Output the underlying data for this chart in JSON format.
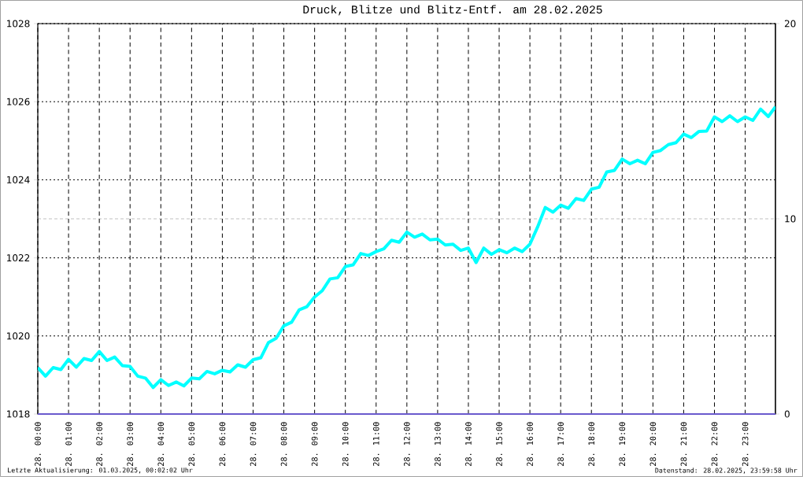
{
  "chart_data": {
    "type": "line",
    "title": "Druck, Blitze und Blitz-Entf. am 28.02.2025",
    "x": [
      "2025-02-28T00:00",
      "2025-02-28T00:15",
      "2025-02-28T00:30",
      "2025-02-28T00:45",
      "2025-02-28T01:00",
      "2025-02-28T01:15",
      "2025-02-28T01:30",
      "2025-02-28T01:45",
      "2025-02-28T02:00",
      "2025-02-28T02:15",
      "2025-02-28T02:30",
      "2025-02-28T02:45",
      "2025-02-28T03:00",
      "2025-02-28T03:15",
      "2025-02-28T03:30",
      "2025-02-28T03:45",
      "2025-02-28T04:00",
      "2025-02-28T04:15",
      "2025-02-28T04:30",
      "2025-02-28T04:45",
      "2025-02-28T05:00",
      "2025-02-28T05:15",
      "2025-02-28T05:30",
      "2025-02-28T05:45",
      "2025-02-28T06:00",
      "2025-02-28T06:15",
      "2025-02-28T06:30",
      "2025-02-28T06:45",
      "2025-02-28T07:00",
      "2025-02-28T07:15",
      "2025-02-28T07:30",
      "2025-02-28T07:45",
      "2025-02-28T08:00",
      "2025-02-28T08:15",
      "2025-02-28T08:30",
      "2025-02-28T08:45",
      "2025-02-28T09:00",
      "2025-02-28T09:15",
      "2025-02-28T09:30",
      "2025-02-28T09:45",
      "2025-02-28T10:00",
      "2025-02-28T10:15",
      "2025-02-28T10:30",
      "2025-02-28T10:45",
      "2025-02-28T11:00",
      "2025-02-28T11:15",
      "2025-02-28T11:30",
      "2025-02-28T11:45",
      "2025-02-28T12:00",
      "2025-02-28T12:15",
      "2025-02-28T12:30",
      "2025-02-28T12:45",
      "2025-02-28T13:00",
      "2025-02-28T13:15",
      "2025-02-28T13:30",
      "2025-02-28T13:45",
      "2025-02-28T14:00",
      "2025-02-28T14:15",
      "2025-02-28T14:30",
      "2025-02-28T14:45",
      "2025-02-28T15:00",
      "2025-02-28T15:15",
      "2025-02-28T15:30",
      "2025-02-28T15:45",
      "2025-02-28T16:00",
      "2025-02-28T16:15",
      "2025-02-28T16:30",
      "2025-02-28T16:45",
      "2025-02-28T17:00",
      "2025-02-28T17:15",
      "2025-02-28T17:30",
      "2025-02-28T17:45",
      "2025-02-28T18:00",
      "2025-02-28T18:15",
      "2025-02-28T18:30",
      "2025-02-28T18:45",
      "2025-02-28T19:00",
      "2025-02-28T19:15",
      "2025-02-28T19:30",
      "2025-02-28T19:45",
      "2025-02-28T20:00",
      "2025-02-28T20:15",
      "2025-02-28T20:30",
      "2025-02-28T20:45",
      "2025-02-28T21:00",
      "2025-02-28T21:15",
      "2025-02-28T21:30",
      "2025-02-28T21:45",
      "2025-02-28T22:00",
      "2025-02-28T22:15",
      "2025-02-28T22:30",
      "2025-02-28T22:45",
      "2025-02-28T23:00",
      "2025-02-28T23:15",
      "2025-02-28T23:30",
      "2025-02-28T23:45",
      "2025-02-28T23:59"
    ],
    "series": [
      {
        "color": "#00ffff",
        "values": [
          1019.19,
          1018.97,
          1019.19,
          1019.14,
          1019.4,
          1019.2,
          1019.42,
          1019.37,
          1019.6,
          1019.37,
          1019.46,
          1019.24,
          1019.22,
          1018.97,
          1018.92,
          1018.68,
          1018.88,
          1018.73,
          1018.82,
          1018.72,
          1018.92,
          1018.9,
          1019.09,
          1019.03,
          1019.12,
          1019.08,
          1019.26,
          1019.2,
          1019.39,
          1019.44,
          1019.83,
          1019.94,
          1020.26,
          1020.35,
          1020.67,
          1020.75,
          1021.0,
          1021.16,
          1021.46,
          1021.49,
          1021.78,
          1021.82,
          1022.11,
          1022.06,
          1022.16,
          1022.23,
          1022.45,
          1022.4,
          1022.66,
          1022.53,
          1022.61,
          1022.46,
          1022.48,
          1022.33,
          1022.35,
          1022.19,
          1022.25,
          1021.88,
          1022.25,
          1022.09,
          1022.21,
          1022.13,
          1022.25,
          1022.16,
          1022.35,
          1022.79,
          1023.29,
          1023.17,
          1023.35,
          1023.27,
          1023.52,
          1023.47,
          1023.76,
          1023.81,
          1024.2,
          1024.24,
          1024.53,
          1024.41,
          1024.5,
          1024.41,
          1024.7,
          1024.75,
          1024.9,
          1024.95,
          1025.17,
          1025.08,
          1025.24,
          1025.25,
          1025.61,
          1025.49,
          1025.64,
          1025.49,
          1025.61,
          1025.52,
          1025.81,
          1025.62,
          1025.87
        ]
      },
      {
        "color": "#6a5acd",
        "axis": "y2",
        "x": [
          "2025-02-28T00:00",
          "2025-02-28T23:59"
        ],
        "values": [
          0,
          0
        ]
      }
    ],
    "xlim": [
      "2025-02-28T00:00",
      "2025-02-28T23:59"
    ],
    "xticks": [
      {
        "value": "2025-02-28T00:00",
        "label": "28. 00:00"
      },
      {
        "value": "2025-02-28T01:00",
        "label": "28. 01:00"
      },
      {
        "value": "2025-02-28T02:00",
        "label": "28. 02:00"
      },
      {
        "value": "2025-02-28T03:00",
        "label": "28. 03:00"
      },
      {
        "value": "2025-02-28T04:00",
        "label": "28. 04:00"
      },
      {
        "value": "2025-02-28T05:00",
        "label": "28. 05:00"
      },
      {
        "value": "2025-02-28T06:00",
        "label": "28. 06:00"
      },
      {
        "value": "2025-02-28T07:00",
        "label": "28. 07:00"
      },
      {
        "value": "2025-02-28T08:00",
        "label": "28. 08:00"
      },
      {
        "value": "2025-02-28T09:00",
        "label": "28. 09:00"
      },
      {
        "value": "2025-02-28T10:00",
        "label": "28. 10:00"
      },
      {
        "value": "2025-02-28T11:00",
        "label": "28. 11:00"
      },
      {
        "value": "2025-02-28T12:00",
        "label": "28. 12:00"
      },
      {
        "value": "2025-02-28T13:00",
        "label": "28. 13:00"
      },
      {
        "value": "2025-02-28T14:00",
        "label": "28. 14:00"
      },
      {
        "value": "2025-02-28T15:00",
        "label": "28. 15:00"
      },
      {
        "value": "2025-02-28T16:00",
        "label": "28. 16:00"
      },
      {
        "value": "2025-02-28T17:00",
        "label": "28. 17:00"
      },
      {
        "value": "2025-02-28T18:00",
        "label": "28. 18:00"
      },
      {
        "value": "2025-02-28T19:00",
        "label": "28. 19:00"
      },
      {
        "value": "2025-02-28T20:00",
        "label": "28. 20:00"
      },
      {
        "value": "2025-02-28T21:00",
        "label": "28. 21:00"
      },
      {
        "value": "2025-02-28T22:00",
        "label": "28. 22:00"
      },
      {
        "value": "2025-02-28T23:00",
        "label": "28. 23:00"
      }
    ],
    "ylim": [
      1018,
      1028
    ],
    "yticks": [
      1018,
      1020,
      1022,
      1024,
      1026,
      1028
    ],
    "y2lim": [
      0,
      20
    ],
    "y2ticks": [
      0,
      10,
      20
    ],
    "ref_lines": [
      {
        "axis": "y2",
        "value": 10,
        "color": "#c0c0c0",
        "line_style": "dashed"
      }
    ],
    "grid": true,
    "marker": "none",
    "line_style": "solid",
    "annotations": [
      "Letzte Aktualisierung: 01.03.2025, 00:02:02 Uhr",
      "Datenstand: 28.02.2025, 23:59:58 Uhr"
    ]
  }
}
